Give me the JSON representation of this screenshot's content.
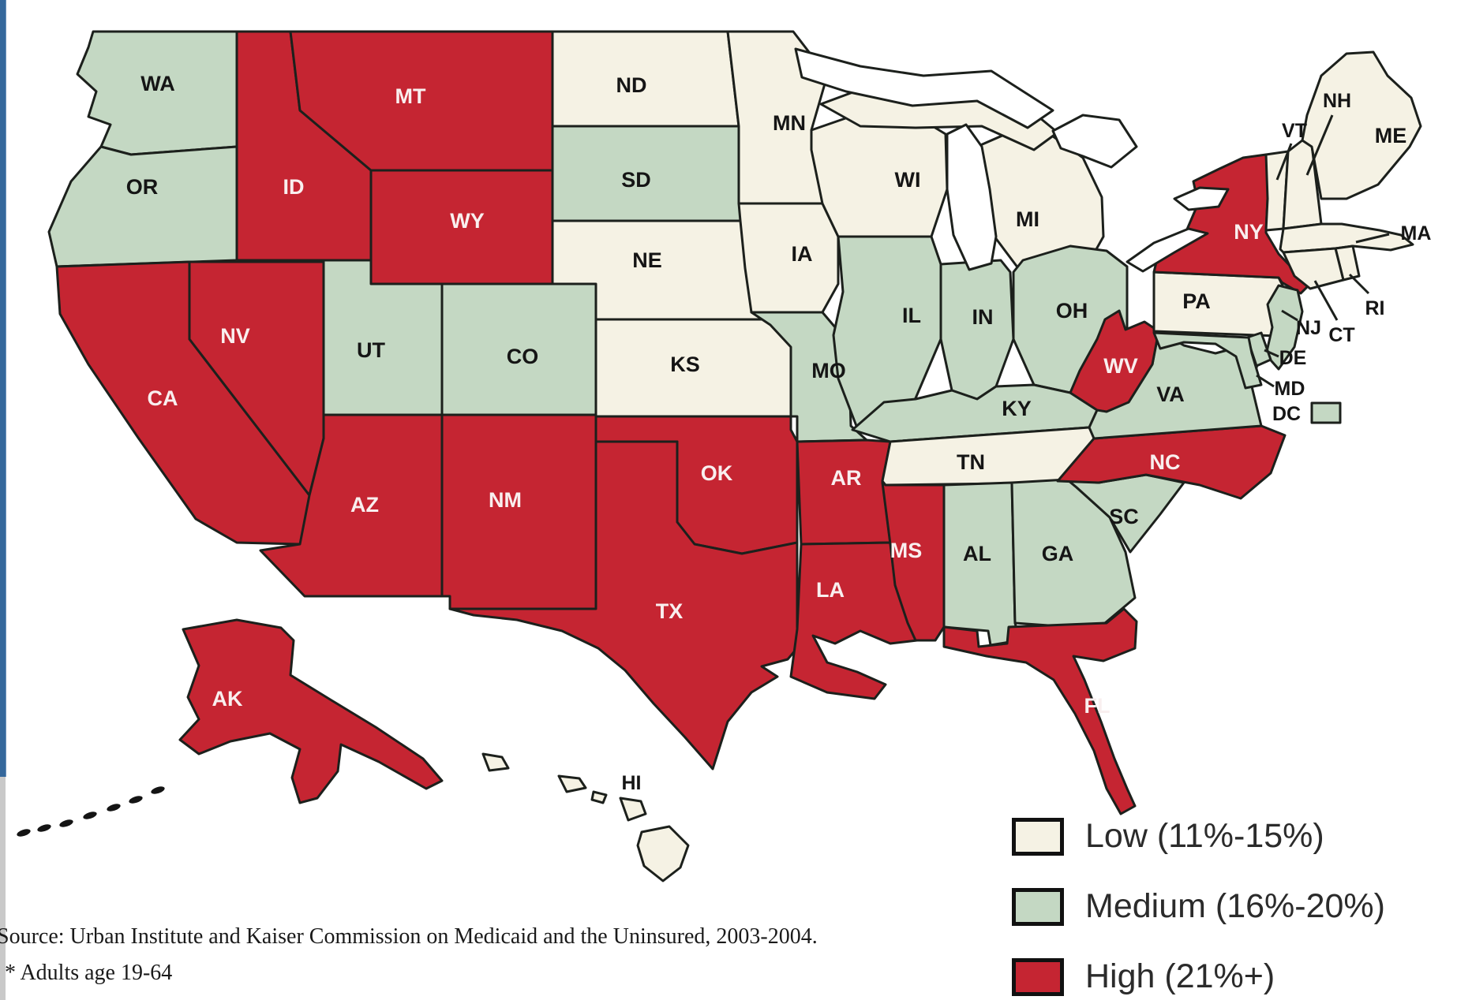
{
  "map": {
    "border_color": "#1c201c",
    "levels": {
      "low": {
        "color": "#f5f2e4"
      },
      "medium": {
        "color": "#c4d8c3"
      },
      "high": {
        "color": "#c52532"
      }
    },
    "states": [
      {
        "id": "WA",
        "label": "WA",
        "level": "medium"
      },
      {
        "id": "OR",
        "label": "OR",
        "level": "medium"
      },
      {
        "id": "CA",
        "label": "CA",
        "level": "high"
      },
      {
        "id": "NV",
        "label": "NV",
        "level": "high"
      },
      {
        "id": "ID",
        "label": "ID",
        "level": "high"
      },
      {
        "id": "MT",
        "label": "MT",
        "level": "high"
      },
      {
        "id": "WY",
        "label": "WY",
        "level": "high"
      },
      {
        "id": "UT",
        "label": "UT",
        "level": "medium"
      },
      {
        "id": "CO",
        "label": "CO",
        "level": "medium"
      },
      {
        "id": "AZ",
        "label": "AZ",
        "level": "high"
      },
      {
        "id": "NM",
        "label": "NM",
        "level": "high"
      },
      {
        "id": "ND",
        "label": "ND",
        "level": "low"
      },
      {
        "id": "SD",
        "label": "SD",
        "level": "medium"
      },
      {
        "id": "NE",
        "label": "NE",
        "level": "low"
      },
      {
        "id": "KS",
        "label": "KS",
        "level": "low"
      },
      {
        "id": "OK",
        "label": "OK",
        "level": "high"
      },
      {
        "id": "TX",
        "label": "TX",
        "level": "high"
      },
      {
        "id": "MN",
        "label": "MN",
        "level": "low"
      },
      {
        "id": "IA",
        "label": "IA",
        "level": "low"
      },
      {
        "id": "MO",
        "label": "MO",
        "level": "medium"
      },
      {
        "id": "AR",
        "label": "AR",
        "level": "high"
      },
      {
        "id": "LA",
        "label": "LA",
        "level": "high"
      },
      {
        "id": "WI",
        "label": "WI",
        "level": "low"
      },
      {
        "id": "IL",
        "label": "IL",
        "level": "medium"
      },
      {
        "id": "MI",
        "label": "MI",
        "level": "low"
      },
      {
        "id": "IN",
        "label": "IN",
        "level": "medium"
      },
      {
        "id": "OH",
        "label": "OH",
        "level": "medium"
      },
      {
        "id": "KY",
        "label": "KY",
        "level": "medium"
      },
      {
        "id": "TN",
        "label": "TN",
        "level": "low"
      },
      {
        "id": "MS",
        "label": "MS",
        "level": "high"
      },
      {
        "id": "AL",
        "label": "AL",
        "level": "medium"
      },
      {
        "id": "GA",
        "label": "GA",
        "level": "medium"
      },
      {
        "id": "SC",
        "label": "SC",
        "level": "medium"
      },
      {
        "id": "NC",
        "label": "NC",
        "level": "high"
      },
      {
        "id": "VA",
        "label": "VA",
        "level": "medium"
      },
      {
        "id": "WV",
        "label": "WV",
        "level": "high"
      },
      {
        "id": "FL",
        "label": "FL",
        "level": "high"
      },
      {
        "id": "PA",
        "label": "PA",
        "level": "low"
      },
      {
        "id": "NY",
        "label": "NY",
        "level": "high"
      },
      {
        "id": "VT",
        "label": "VT",
        "level": "low"
      },
      {
        "id": "NH",
        "label": "NH",
        "level": "low"
      },
      {
        "id": "ME",
        "label": "ME",
        "level": "low"
      },
      {
        "id": "MA",
        "label": "MA",
        "level": "low"
      },
      {
        "id": "RI",
        "label": "RI",
        "level": "low"
      },
      {
        "id": "CT",
        "label": "CT",
        "level": "low"
      },
      {
        "id": "NJ",
        "label": "NJ",
        "level": "medium"
      },
      {
        "id": "DE",
        "label": "DE",
        "level": "medium"
      },
      {
        "id": "MD",
        "label": "MD",
        "level": "medium"
      },
      {
        "id": "DC",
        "label": "DC",
        "level": "medium"
      },
      {
        "id": "AK",
        "label": "AK",
        "level": "high"
      },
      {
        "id": "HI",
        "label": "HI",
        "level": "low"
      }
    ]
  },
  "legend": {
    "items": [
      {
        "level": "low",
        "label": "Low (11%-15%)"
      },
      {
        "level": "medium",
        "label": "Medium (16%-20%)"
      },
      {
        "level": "high",
        "label": "High (21%+)"
      }
    ]
  },
  "source": {
    "line1": "Source: Urban Institute and Kaiser Commission on Medicaid and the Uninsured, 2003-2004.",
    "line2": "* Adults age 19-64"
  }
}
